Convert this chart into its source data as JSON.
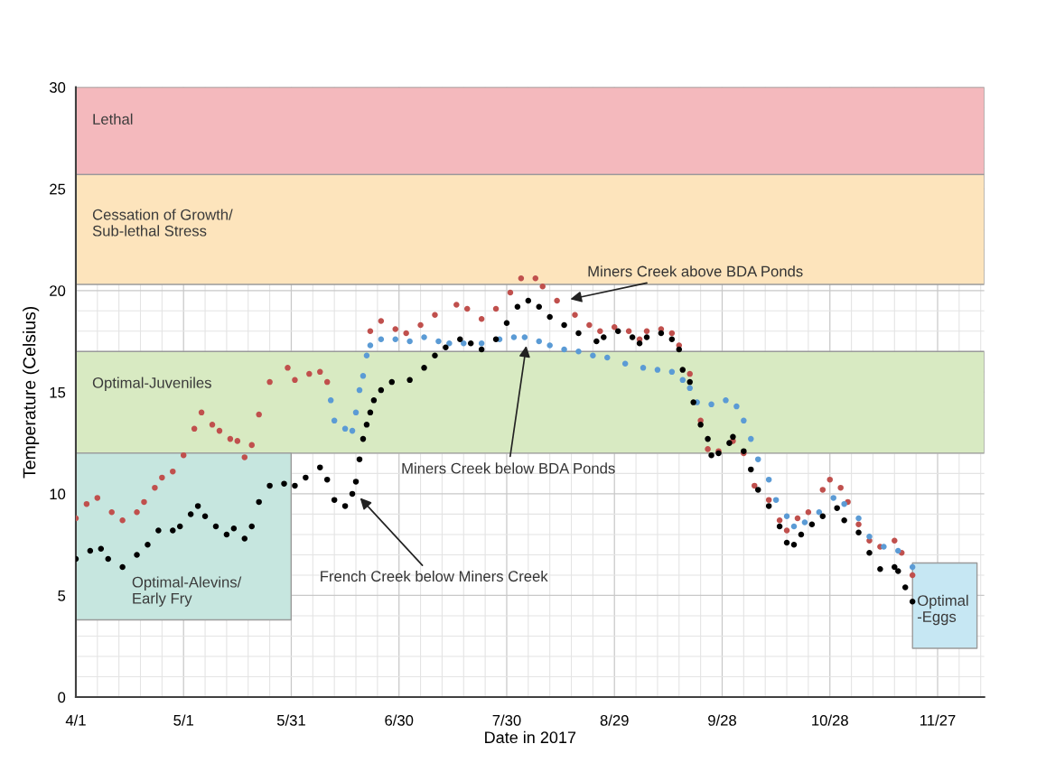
{
  "chart_data": {
    "type": "scatter",
    "xlabel": "Date in 2017",
    "ylabel": "Temperature (Celsius)",
    "xlim": [
      "2017-04-01",
      "2017-12-10"
    ],
    "ylim": [
      0,
      30
    ],
    "yticks": [
      0,
      5,
      10,
      15,
      20,
      25,
      30
    ],
    "xticks": [
      {
        "value": "2017-04-01",
        "label": "4/1"
      },
      {
        "value": "2017-05-01",
        "label": "5/1"
      },
      {
        "value": "2017-05-31",
        "label": "5/31"
      },
      {
        "value": "2017-06-30",
        "label": "6/30"
      },
      {
        "value": "2017-07-30",
        "label": "7/30"
      },
      {
        "value": "2017-08-29",
        "label": "8/29"
      },
      {
        "value": "2017-09-28",
        "label": "9/28"
      },
      {
        "value": "2017-10-28",
        "label": "10/28"
      },
      {
        "value": "2017-11-27",
        "label": "11/27"
      }
    ],
    "grid": true,
    "marker": "circle",
    "bands": [
      {
        "axis": "y",
        "from": 25.7,
        "to": 30,
        "label": "Lethal",
        "color": "#f4b9bd"
      },
      {
        "axis": "y",
        "from": 20.3,
        "to": 25.7,
        "label": "Cessation of Growth/\nSub-lethal Stress",
        "color": "#fde4bc"
      },
      {
        "axis": "y",
        "from": 12,
        "to": 17,
        "label": "Optimal-Juveniles",
        "color": "#d8eac2"
      },
      {
        "axis": "y",
        "from": 3.8,
        "to": 12,
        "label": "Optimal-Alevins/\nEarly Fry",
        "color": "#c6e6df"
      },
      {
        "axis": "y",
        "from": 2.4,
        "to": 6.6,
        "label": "Optimal\n-Eggs",
        "color": "#c6e7f3"
      }
    ],
    "annotations": [
      "Miners Creek above BDA Ponds",
      "Miners Creek below BDA Ponds",
      "French Creek below Miners Creek"
    ],
    "series": [
      {
        "color": "#c0504d",
        "x": [
          "2017-04-01",
          "2017-04-04",
          "2017-04-07",
          "2017-04-11",
          "2017-04-14",
          "2017-04-18",
          "2017-04-20",
          "2017-04-23",
          "2017-04-25",
          "2017-04-28",
          "2017-05-01",
          "2017-05-04",
          "2017-05-06",
          "2017-05-09",
          "2017-05-11",
          "2017-05-14",
          "2017-05-16",
          "2017-05-18",
          "2017-05-20",
          "2017-05-22",
          "2017-05-25",
          "2017-05-30",
          "2017-06-01",
          "2017-06-05",
          "2017-06-08",
          "2017-06-10",
          "2017-06-22",
          "2017-06-25",
          "2017-06-29",
          "2017-07-02",
          "2017-07-06",
          "2017-07-10",
          "2017-07-16",
          "2017-07-19",
          "2017-07-23",
          "2017-07-27",
          "2017-07-31",
          "2017-08-03",
          "2017-08-07",
          "2017-08-09",
          "2017-08-13",
          "2017-08-18",
          "2017-08-22",
          "2017-08-25",
          "2017-08-29",
          "2017-09-02",
          "2017-09-05",
          "2017-09-07",
          "2017-09-11",
          "2017-09-14",
          "2017-09-16",
          "2017-09-19",
          "2017-09-22",
          "2017-09-24",
          "2017-09-27",
          "2017-10-01",
          "2017-10-04",
          "2017-10-07",
          "2017-10-11",
          "2017-10-14",
          "2017-10-16",
          "2017-10-19",
          "2017-10-22",
          "2017-10-26",
          "2017-10-28",
          "2017-10-31",
          "2017-11-02",
          "2017-11-05",
          "2017-11-08",
          "2017-11-11",
          "2017-11-15",
          "2017-11-17",
          "2017-11-20"
        ],
        "values": [
          8.8,
          9.5,
          9.8,
          9.1,
          8.7,
          9.1,
          9.6,
          10.3,
          10.8,
          11.1,
          11.9,
          13.2,
          14.0,
          13.4,
          13.1,
          12.7,
          12.6,
          11.8,
          12.4,
          13.9,
          15.5,
          16.2,
          15.6,
          15.9,
          16.0,
          15.5,
          18.0,
          18.5,
          18.1,
          17.9,
          18.3,
          18.8,
          19.3,
          19.1,
          18.6,
          19.1,
          19.9,
          20.6,
          20.6,
          20.2,
          19.5,
          18.8,
          18.3,
          18.0,
          18.2,
          18.0,
          17.6,
          18.0,
          18.1,
          17.9,
          17.3,
          15.9,
          13.6,
          12.2,
          12.1,
          12.6,
          12.0,
          10.4,
          9.7,
          8.7,
          8.2,
          8.8,
          9.1,
          10.2,
          10.7,
          10.3,
          9.6,
          8.5,
          7.7,
          7.4,
          7.7,
          7.1,
          6.0
        ]
      },
      {
        "color": "#5b9bd5",
        "x": [
          "2017-06-11",
          "2017-06-12",
          "2017-06-15",
          "2017-06-17",
          "2017-06-18",
          "2017-06-19",
          "2017-06-20",
          "2017-06-21",
          "2017-06-22",
          "2017-06-25",
          "2017-06-29",
          "2017-07-03",
          "2017-07-07",
          "2017-07-11",
          "2017-07-14",
          "2017-07-18",
          "2017-07-23",
          "2017-07-28",
          "2017-08-01",
          "2017-08-04",
          "2017-08-08",
          "2017-08-11",
          "2017-08-15",
          "2017-08-19",
          "2017-08-23",
          "2017-08-27",
          "2017-09-01",
          "2017-09-06",
          "2017-09-10",
          "2017-09-14",
          "2017-09-17",
          "2017-09-19",
          "2017-09-21",
          "2017-09-25",
          "2017-09-29",
          "2017-10-02",
          "2017-10-04",
          "2017-10-06",
          "2017-10-08",
          "2017-10-11",
          "2017-10-13",
          "2017-10-16",
          "2017-10-18",
          "2017-10-21",
          "2017-10-25",
          "2017-10-29",
          "2017-11-01",
          "2017-11-05",
          "2017-11-08",
          "2017-11-12",
          "2017-11-16",
          "2017-11-20"
        ],
        "values": [
          14.6,
          13.6,
          13.2,
          13.1,
          14.0,
          15.1,
          15.8,
          16.8,
          17.3,
          17.6,
          17.6,
          17.5,
          17.7,
          17.5,
          17.4,
          17.4,
          17.4,
          17.6,
          17.7,
          17.7,
          17.5,
          17.3,
          17.1,
          17.0,
          16.8,
          16.7,
          16.4,
          16.2,
          16.1,
          16.0,
          15.6,
          15.2,
          14.5,
          14.4,
          14.6,
          14.3,
          13.6,
          12.7,
          11.7,
          10.7,
          9.7,
          8.9,
          8.4,
          8.6,
          9.1,
          9.8,
          9.5,
          8.8,
          7.9,
          7.4,
          7.2,
          6.4
        ]
      },
      {
        "color": "#000000",
        "x": [
          "2017-04-01",
          "2017-04-05",
          "2017-04-08",
          "2017-04-10",
          "2017-04-14",
          "2017-04-18",
          "2017-04-21",
          "2017-04-24",
          "2017-04-28",
          "2017-04-30",
          "2017-05-03",
          "2017-05-05",
          "2017-05-07",
          "2017-05-10",
          "2017-05-13",
          "2017-05-15",
          "2017-05-18",
          "2017-05-20",
          "2017-05-22",
          "2017-05-25",
          "2017-05-29",
          "2017-06-01",
          "2017-06-04",
          "2017-06-08",
          "2017-06-10",
          "2017-06-12",
          "2017-06-15",
          "2017-06-17",
          "2017-06-18",
          "2017-06-19",
          "2017-06-20",
          "2017-06-21",
          "2017-06-22",
          "2017-06-23",
          "2017-06-25",
          "2017-06-28",
          "2017-07-03",
          "2017-07-07",
          "2017-07-10",
          "2017-07-13",
          "2017-07-17",
          "2017-07-20",
          "2017-07-23",
          "2017-07-27",
          "2017-07-30",
          "2017-08-02",
          "2017-08-05",
          "2017-08-08",
          "2017-08-11",
          "2017-08-15",
          "2017-08-19",
          "2017-08-24",
          "2017-08-26",
          "2017-08-30",
          "2017-09-03",
          "2017-09-05",
          "2017-09-07",
          "2017-09-11",
          "2017-09-14",
          "2017-09-16",
          "2017-09-17",
          "2017-09-19",
          "2017-09-20",
          "2017-09-22",
          "2017-09-24",
          "2017-09-25",
          "2017-09-27",
          "2017-09-30",
          "2017-10-01",
          "2017-10-04",
          "2017-10-06",
          "2017-10-08",
          "2017-10-11",
          "2017-10-14",
          "2017-10-16",
          "2017-10-18",
          "2017-10-20",
          "2017-10-23",
          "2017-10-26",
          "2017-10-30",
          "2017-11-01",
          "2017-11-05",
          "2017-11-08",
          "2017-11-11",
          "2017-11-15",
          "2017-11-16",
          "2017-11-18",
          "2017-11-20"
        ],
        "values": [
          6.8,
          7.2,
          7.3,
          6.8,
          6.4,
          7.0,
          7.5,
          8.2,
          8.2,
          8.4,
          9.0,
          9.4,
          8.9,
          8.4,
          8.0,
          8.3,
          7.8,
          8.4,
          9.6,
          10.4,
          10.5,
          10.4,
          10.8,
          11.3,
          10.7,
          9.7,
          9.4,
          10.0,
          10.6,
          11.7,
          12.7,
          13.4,
          14.0,
          14.6,
          15.1,
          15.5,
          15.6,
          16.2,
          16.8,
          17.2,
          17.6,
          17.4,
          17.1,
          17.6,
          18.4,
          19.2,
          19.5,
          19.2,
          18.7,
          18.3,
          17.9,
          17.5,
          17.7,
          18.0,
          17.7,
          17.4,
          17.7,
          17.9,
          17.6,
          17.1,
          16.1,
          15.5,
          14.5,
          13.4,
          12.7,
          11.9,
          12.0,
          12.5,
          12.8,
          12.1,
          11.2,
          10.2,
          9.4,
          8.4,
          7.6,
          7.5,
          8.0,
          8.5,
          8.9,
          9.3,
          8.7,
          8.1,
          7.1,
          6.3,
          6.4,
          6.2,
          5.4,
          4.7
        ]
      }
    ]
  }
}
